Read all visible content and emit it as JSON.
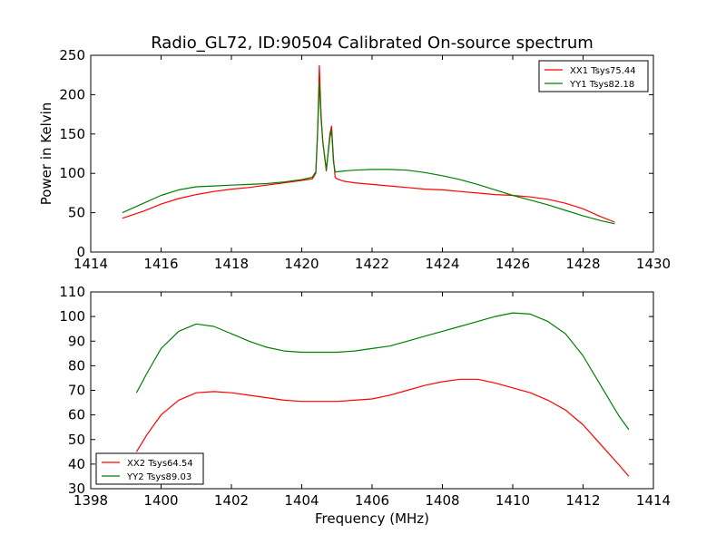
{
  "title": "Radio_GL72, ID:90504 Calibrated On-source spectrum",
  "colors": {
    "red": "#ff0000",
    "green": "#008000"
  },
  "chart_data": [
    {
      "type": "line",
      "xlim": [
        1414,
        1430
      ],
      "ylim": [
        0,
        250
      ],
      "xticks": [
        1414,
        1416,
        1418,
        1420,
        1422,
        1424,
        1426,
        1428,
        1430
      ],
      "yticks": [
        0,
        50,
        100,
        150,
        200,
        250
      ],
      "xlabel": "",
      "ylabel": "Power in Kelvin",
      "legend_position": "top-right",
      "series": [
        {
          "name": "XX1 Tsys75.44",
          "color": "#ff0000",
          "x": [
            1414.9,
            1415.5,
            1416.0,
            1416.5,
            1417.0,
            1417.5,
            1418.0,
            1418.5,
            1419.0,
            1419.5,
            1420.0,
            1420.3,
            1420.4,
            1420.45,
            1420.5,
            1420.55,
            1420.6,
            1420.7,
            1420.8,
            1420.85,
            1420.9,
            1420.95,
            1421.0,
            1421.2,
            1421.5,
            1422.0,
            1422.5,
            1423.0,
            1423.5,
            1424.0,
            1424.5,
            1425.0,
            1425.5,
            1426.0,
            1426.5,
            1427.0,
            1427.5,
            1428.0,
            1428.5,
            1428.9
          ],
          "y": [
            43,
            52,
            61,
            68,
            73,
            77,
            80,
            82,
            85,
            88,
            91,
            93,
            100,
            150,
            237,
            175,
            140,
            103,
            150,
            160,
            120,
            95,
            93,
            90,
            88,
            86,
            84,
            82,
            80,
            79,
            77,
            75,
            73,
            72,
            70,
            67,
            62,
            55,
            45,
            38
          ]
        },
        {
          "name": "YY1 Tsys82.18",
          "color": "#008000",
          "x": [
            1414.9,
            1415.5,
            1416.0,
            1416.5,
            1417.0,
            1417.5,
            1418.0,
            1418.5,
            1419.0,
            1419.5,
            1420.0,
            1420.3,
            1420.4,
            1420.45,
            1420.5,
            1420.55,
            1420.6,
            1420.7,
            1420.8,
            1420.85,
            1420.9,
            1420.95,
            1421.0,
            1421.2,
            1421.5,
            1422.0,
            1422.5,
            1423.0,
            1423.5,
            1424.0,
            1424.5,
            1425.0,
            1425.5,
            1426.0,
            1426.5,
            1427.0,
            1427.5,
            1428.0,
            1428.5,
            1428.9
          ],
          "y": [
            50,
            62,
            72,
            79,
            83,
            84,
            85,
            86,
            87,
            89,
            92,
            95,
            102,
            150,
            215,
            170,
            140,
            105,
            145,
            155,
            115,
            102,
            102,
            103,
            104,
            105,
            105,
            104,
            101,
            97,
            92,
            86,
            79,
            72,
            66,
            60,
            53,
            46,
            40,
            36
          ]
        }
      ]
    },
    {
      "type": "line",
      "xlim": [
        1398,
        1414
      ],
      "ylim": [
        30,
        110
      ],
      "xticks": [
        1398,
        1400,
        1402,
        1404,
        1406,
        1408,
        1410,
        1412,
        1414
      ],
      "yticks": [
        30,
        40,
        50,
        60,
        70,
        80,
        90,
        100,
        110
      ],
      "xlabel": "Frequency (MHz)",
      "ylabel": "",
      "legend_position": "bottom-left",
      "series": [
        {
          "name": "XX2 Tsys64.54",
          "color": "#ff0000",
          "x": [
            1399.3,
            1399.6,
            1400.0,
            1400.5,
            1401.0,
            1401.5,
            1402.0,
            1402.5,
            1403.0,
            1403.5,
            1404.0,
            1404.5,
            1405.0,
            1405.5,
            1406.0,
            1406.5,
            1407.0,
            1407.5,
            1408.0,
            1408.5,
            1409.0,
            1409.5,
            1410.0,
            1410.5,
            1411.0,
            1411.5,
            1412.0,
            1412.5,
            1413.0,
            1413.3
          ],
          "y": [
            45,
            52,
            60,
            66,
            69,
            69.5,
            69,
            68,
            67,
            66,
            65.5,
            65.5,
            65.5,
            66,
            66.5,
            68,
            70,
            72,
            73.5,
            74.5,
            74.5,
            73,
            71,
            69,
            66,
            62,
            56,
            48,
            40,
            35
          ]
        },
        {
          "name": "YY2 Tsys89.03",
          "color": "#008000",
          "x": [
            1399.3,
            1399.6,
            1400.0,
            1400.5,
            1401.0,
            1401.5,
            1402.0,
            1402.5,
            1403.0,
            1403.5,
            1404.0,
            1404.5,
            1405.0,
            1405.5,
            1406.0,
            1406.5,
            1407.0,
            1407.5,
            1408.0,
            1408.5,
            1409.0,
            1409.5,
            1410.0,
            1410.5,
            1411.0,
            1411.5,
            1412.0,
            1412.5,
            1413.0,
            1413.3
          ],
          "y": [
            69,
            77,
            87,
            94,
            97,
            96,
            93,
            90,
            87.5,
            86,
            85.5,
            85.5,
            85.5,
            86,
            87,
            88,
            90,
            92,
            94,
            96,
            98,
            100,
            101.5,
            101,
            98,
            93,
            84,
            72,
            60,
            54
          ]
        }
      ]
    }
  ]
}
